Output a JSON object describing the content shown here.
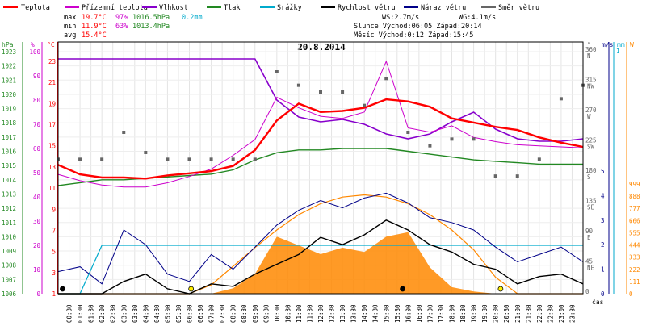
{
  "chart_data": {
    "type": "line",
    "title": "20.8.2014",
    "legend": [
      {
        "name": "Teplota",
        "color": "#ff0000"
      },
      {
        "name": "Přízemní teplota",
        "color": "#cc00cc"
      },
      {
        "name": "Vlhkost",
        "color": "#8800cc"
      },
      {
        "name": "Tlak",
        "color": "#228822"
      },
      {
        "name": "Srážky",
        "color": "#00aacc"
      },
      {
        "name": "Rychlost větru",
        "color": "#000000"
      },
      {
        "name": "Náraz větru",
        "color": "#000088"
      },
      {
        "name": "Směr větru",
        "color": "#666666"
      }
    ],
    "stats": {
      "max_label": "max",
      "max_temp": "19.7°C",
      "max_hum": "97%",
      "max_press": "1016.5hPa",
      "max_rain": "0.2mm",
      "min_label": "min",
      "min_temp": "11.9°C",
      "min_hum": "63%",
      "min_press": "1013.4hPa",
      "avg_label": "avg",
      "avg_temp": "15.4°C"
    },
    "info": {
      "ws": "WS:2.7m/s",
      "wg": "WG:4.1m/s",
      "sun": "Slunce Východ:06:05  Západ:20:14",
      "moon": "Měsíc  Východ:0:12   Západ:15:45"
    },
    "axes": {
      "hpa_unit": "hPa",
      "pct_unit": "%",
      "c_unit": "°C",
      "deg_unit": "°",
      "ms_unit": "m/s",
      "mm_unit": "mm",
      "w_unit": "W",
      "time_unit": "čas",
      "hpa_ticks": [
        "1023",
        "1022",
        "1021",
        "1020",
        "1019",
        "1018",
        "1017",
        "1016",
        "1015",
        "1014",
        "1013",
        "1012",
        "1011",
        "1010",
        "1009",
        "1008",
        "1007",
        "1006"
      ],
      "pct_ticks": [
        "100",
        "90",
        "80",
        "70",
        "60",
        "50",
        "40",
        "30",
        "20",
        "10",
        "0"
      ],
      "c_ticks": [
        "23",
        "21",
        "19",
        "17",
        "15",
        "13",
        "11",
        "9",
        "7",
        "5",
        "3",
        "1"
      ],
      "dir_ticks": [
        {
          "deg": "360",
          "dir": "N"
        },
        {
          "deg": "315",
          "dir": "NW"
        },
        {
          "deg": "270",
          "dir": "W"
        },
        {
          "deg": "225",
          "dir": "SW"
        },
        {
          "deg": "180",
          "dir": "S"
        },
        {
          "deg": "135",
          "dir": "SE"
        },
        {
          "deg": "90",
          "dir": "E"
        },
        {
          "deg": "45",
          "dir": "NE"
        },
        {
          "deg": "0",
          "dir": ""
        }
      ],
      "ms_ticks": [
        "5",
        "4",
        "3",
        "2",
        "1",
        "0"
      ],
      "mm_top": "1",
      "w_ticks": [
        "999",
        "888",
        "777",
        "666",
        "555",
        "444",
        "333",
        "222",
        "111",
        "0"
      ],
      "time_ticks": [
        "00:30",
        "01:00",
        "01:30",
        "02:00",
        "02:30",
        "03:00",
        "03:30",
        "04:00",
        "04:30",
        "05:00",
        "05:30",
        "06:00",
        "06:30",
        "07:00",
        "07:30",
        "08:00",
        "08:30",
        "09:00",
        "09:30",
        "10:00",
        "10:30",
        "11:00",
        "11:30",
        "12:00",
        "12:30",
        "13:00",
        "13:30",
        "14:00",
        "14:30",
        "15:00",
        "15:30",
        "16:00",
        "16:30",
        "17:00",
        "17:30",
        "18:00",
        "18:30",
        "19:00",
        "19:30",
        "20:00",
        "20:30",
        "21:00",
        "21:30",
        "22:00",
        "22:30",
        "23:00",
        "23:30"
      ]
    },
    "series_hourly": {
      "hours": [
        0,
        1,
        2,
        3,
        4,
        5,
        6,
        7,
        8,
        9,
        10,
        11,
        12,
        13,
        14,
        15,
        16,
        17,
        18,
        19,
        20,
        21,
        22,
        23,
        24
      ],
      "teplota": [
        13.2,
        12.3,
        12.0,
        12.0,
        11.9,
        12.2,
        12.4,
        12.6,
        13.1,
        14.6,
        17.4,
        19.0,
        18.2,
        18.3,
        18.6,
        19.4,
        19.2,
        18.7,
        17.6,
        17.2,
        16.8,
        16.5,
        15.8,
        15.3,
        14.9
      ],
      "prizemni_teplota": [
        12.3,
        11.7,
        11.3,
        11.1,
        11.1,
        11.5,
        12.1,
        12.8,
        14.1,
        15.6,
        19.6,
        18.6,
        17.8,
        17.6,
        18.2,
        23.0,
        16.7,
        16.3,
        16.9,
        15.8,
        15.4,
        15.1,
        15.0,
        14.9,
        14.8
      ],
      "vlhkost": [
        97,
        97,
        97,
        97,
        97,
        97,
        97,
        97,
        97,
        97,
        80,
        73,
        71,
        72,
        70,
        66,
        64,
        66,
        71,
        75,
        68,
        64,
        63,
        63,
        64
      ],
      "tlak": [
        1013.6,
        1013.8,
        1014.0,
        1014.0,
        1014.1,
        1014.2,
        1014.3,
        1014.4,
        1014.7,
        1015.4,
        1015.9,
        1016.1,
        1016.1,
        1016.2,
        1016.2,
        1016.2,
        1016.0,
        1015.8,
        1015.6,
        1015.4,
        1015.3,
        1015.2,
        1015.1,
        1015.1,
        1015.1
      ],
      "rychlost": [
        0,
        0,
        0,
        0.5,
        0.8,
        0.2,
        0,
        0.4,
        0.3,
        0.8,
        1.2,
        1.6,
        2.3,
        2.0,
        2.4,
        3.0,
        2.6,
        2.0,
        1.7,
        1.2,
        1.0,
        0.4,
        0.7,
        0.8,
        0.4
      ],
      "naraz": [
        0.9,
        1.1,
        0.4,
        2.6,
        2.0,
        0.8,
        0.5,
        1.6,
        1.0,
        1.9,
        2.8,
        3.4,
        3.8,
        3.5,
        3.9,
        4.1,
        3.7,
        3.1,
        2.9,
        2.6,
        1.9,
        1.3,
        1.6,
        1.9,
        1.3
      ],
      "smer": [
        200,
        200,
        200,
        240,
        210,
        200,
        200,
        200,
        200,
        200,
        330,
        310,
        300,
        300,
        280,
        320,
        240,
        220,
        230,
        230,
        175,
        175,
        200,
        290,
        310
      ],
      "srazky": [
        0,
        0,
        0.2,
        0.2,
        0.2,
        0.2,
        0.2,
        0.2,
        0.2,
        0.2,
        0.2,
        0.2,
        0.2,
        0.2,
        0.2,
        0.2,
        0.2,
        0.2,
        0.2,
        0.2,
        0.2,
        0.2,
        0.2,
        0.2,
        0.2
      ],
      "slunce_w": [
        0,
        0,
        0,
        0,
        0,
        0,
        0,
        0,
        50,
        180,
        520,
        440,
        360,
        420,
        380,
        520,
        560,
        240,
        60,
        20,
        0,
        0,
        0,
        0,
        0
      ],
      "slunce_teor": [
        0,
        0,
        0,
        0,
        0,
        0,
        0,
        80,
        250,
        420,
        580,
        720,
        820,
        880,
        900,
        880,
        820,
        720,
        580,
        400,
        150,
        0,
        0,
        0,
        0
      ]
    }
  }
}
